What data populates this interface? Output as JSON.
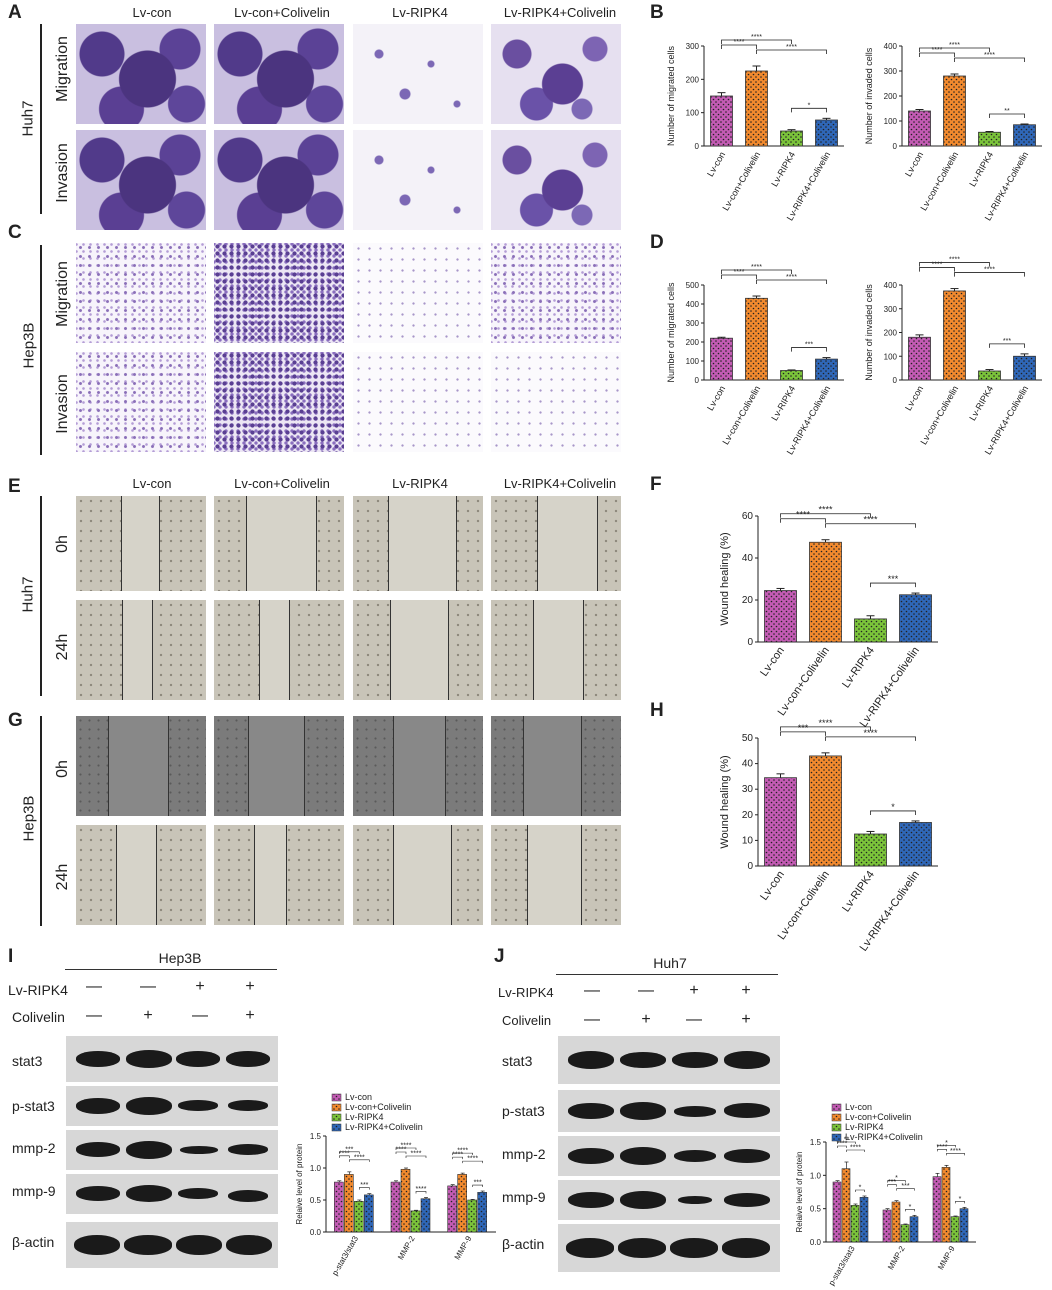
{
  "panels": {
    "A": "A",
    "B": "B",
    "C": "C",
    "D": "D",
    "E": "E",
    "F": "F",
    "G": "G",
    "H": "H",
    "I": "I",
    "J": "J"
  },
  "groups": [
    "Lv-con",
    "Lv-con+Colivelin",
    "Lv-RIPK4",
    "Lv-RIPK4+Colivelin"
  ],
  "cell_lines": {
    "huh7": "Huh7",
    "hep3b": "Hep3B"
  },
  "transwell_rows": [
    "Migration",
    "Invasion"
  ],
  "wound_rows": [
    "0h",
    "24h"
  ],
  "western": {
    "hep3b_title": "Hep3B",
    "huh7_title": "Huh7",
    "treat_labels": [
      "Lv-RIPK4",
      "Colivelin"
    ],
    "ripk4_signs": [
      "—",
      "—",
      "+",
      "+"
    ],
    "colivelin_signs": [
      "—",
      "+",
      "—",
      "+"
    ],
    "proteins_hep3b": [
      "stat3",
      "p-stat3",
      "mmp-2",
      "mmp-9",
      "β-actin"
    ],
    "proteins_huh7": [
      "stat3",
      "p-stat3",
      "mmp-2",
      "mmp-9",
      "β-actin"
    ]
  },
  "colors": {
    "lv_con": "#c35bb4",
    "lv_con_colivelin": "#f28a2e",
    "lv_ripk4": "#7bc43a",
    "lv_ripk4_colivelin": "#2f67b8"
  },
  "chart_data": [
    {
      "id": "B1",
      "type": "bar",
      "ylabel": "Number of migrated cells",
      "ylim": [
        0,
        300
      ],
      "yticks": [
        0,
        100,
        200,
        300
      ],
      "categories": [
        "Lv-con",
        "Lv-con+Colivelin",
        "Lv-RIPK4",
        "Lv-RIPK4+Colivelin"
      ],
      "values": [
        150,
        225,
        45,
        78
      ],
      "errors": [
        10,
        15,
        4,
        5
      ],
      "brackets": [
        {
          "from": 0,
          "to": 1,
          "label": "****"
        },
        {
          "from": 0,
          "to": 2,
          "label": "****"
        },
        {
          "from": 1,
          "to": 3,
          "label": "****"
        },
        {
          "from": 2,
          "to": 3,
          "label": "*"
        }
      ]
    },
    {
      "id": "B2",
      "type": "bar",
      "ylabel": "Number of invaded cells",
      "ylim": [
        0,
        400
      ],
      "yticks": [
        0,
        100,
        200,
        300,
        400
      ],
      "categories": [
        "Lv-con",
        "Lv-con+Colivelin",
        "Lv-RIPK4",
        "Lv-RIPK4+Colivelin"
      ],
      "values": [
        140,
        280,
        55,
        85
      ],
      "errors": [
        6,
        8,
        3,
        3
      ],
      "brackets": [
        {
          "from": 0,
          "to": 1,
          "label": "****"
        },
        {
          "from": 0,
          "to": 2,
          "label": "****"
        },
        {
          "from": 1,
          "to": 3,
          "label": "****"
        },
        {
          "from": 2,
          "to": 3,
          "label": "**"
        }
      ]
    },
    {
      "id": "D1",
      "type": "bar",
      "ylabel": "Number of migrated cells",
      "ylim": [
        0,
        500
      ],
      "yticks": [
        0,
        100,
        200,
        300,
        400,
        500
      ],
      "categories": [
        "Lv-con",
        "Lv-con+Colivelin",
        "Lv-RIPK4",
        "Lv-RIPK4+Colivelin"
      ],
      "values": [
        220,
        430,
        50,
        110
      ],
      "errors": [
        5,
        12,
        3,
        8
      ],
      "brackets": [
        {
          "from": 0,
          "to": 1,
          "label": "****"
        },
        {
          "from": 0,
          "to": 2,
          "label": "****"
        },
        {
          "from": 1,
          "to": 3,
          "label": "****"
        },
        {
          "from": 2,
          "to": 3,
          "label": "***"
        }
      ]
    },
    {
      "id": "D2",
      "type": "bar",
      "ylabel": "Number of invaded cells",
      "ylim": [
        0,
        400
      ],
      "yticks": [
        0,
        100,
        200,
        300,
        400
      ],
      "categories": [
        "Lv-con",
        "Lv-con+Colivelin",
        "Lv-RIPK4",
        "Lv-RIPK4+Colivelin"
      ],
      "values": [
        180,
        375,
        38,
        100
      ],
      "errors": [
        10,
        10,
        6,
        10
      ],
      "brackets": [
        {
          "from": 0,
          "to": 1,
          "label": "****"
        },
        {
          "from": 0,
          "to": 2,
          "label": "****"
        },
        {
          "from": 1,
          "to": 3,
          "label": "****"
        },
        {
          "from": 2,
          "to": 3,
          "label": "***"
        }
      ]
    },
    {
      "id": "F",
      "type": "bar",
      "ylabel": "Wound healing (%)",
      "ylim": [
        0,
        60
      ],
      "yticks": [
        0,
        20,
        40,
        60
      ],
      "categories": [
        "Lv-con",
        "Lv-con+Colivelin",
        "Lv-RIPK4",
        "Lv-RIPK4+Colivelin"
      ],
      "values": [
        24.5,
        47.5,
        11,
        22.5
      ],
      "errors": [
        1,
        1.2,
        1.5,
        0.8
      ],
      "brackets": [
        {
          "from": 0,
          "to": 1,
          "label": "****"
        },
        {
          "from": 0,
          "to": 2,
          "label": "****"
        },
        {
          "from": 1,
          "to": 3,
          "label": "****"
        },
        {
          "from": 2,
          "to": 3,
          "label": "***"
        }
      ]
    },
    {
      "id": "H",
      "type": "bar",
      "ylabel": "Wound healing (%)",
      "ylim": [
        0,
        50
      ],
      "yticks": [
        0,
        10,
        20,
        30,
        40,
        50
      ],
      "categories": [
        "Lv-con",
        "Lv-con+Colivelin",
        "Lv-RIPK4",
        "Lv-RIPK4+Colivelin"
      ],
      "values": [
        34.5,
        43,
        12.5,
        17
      ],
      "errors": [
        1.5,
        1.2,
        1,
        0.6
      ],
      "brackets": [
        {
          "from": 0,
          "to": 1,
          "label": "***"
        },
        {
          "from": 0,
          "to": 2,
          "label": "****"
        },
        {
          "from": 1,
          "to": 3,
          "label": "****"
        },
        {
          "from": 2,
          "to": 3,
          "label": "*"
        }
      ]
    },
    {
      "id": "I",
      "type": "bar",
      "ylabel": "Relaive level of protein",
      "ylim": [
        0,
        1.5
      ],
      "yticks": [
        0.0,
        0.5,
        1.0,
        1.5
      ],
      "categories": [
        "p-stat3/stat3",
        "MMP-2",
        "MMP-9"
      ],
      "series": [
        {
          "name": "Lv-con",
          "values": [
            0.78,
            0.78,
            0.72
          ],
          "errors": [
            0.02,
            0.02,
            0.02
          ]
        },
        {
          "name": "Lv-con+Colivelin",
          "values": [
            0.9,
            0.98,
            0.9
          ],
          "errors": [
            0.04,
            0.02,
            0.02
          ]
        },
        {
          "name": "Lv-RIPK4",
          "values": [
            0.48,
            0.33,
            0.5
          ],
          "errors": [
            0.02,
            0.01,
            0.01
          ]
        },
        {
          "name": "Lv-RIPK4+Colivelin",
          "values": [
            0.58,
            0.52,
            0.62
          ],
          "errors": [
            0.02,
            0.02,
            0.02
          ]
        }
      ],
      "stars": [
        [
          "****",
          "***",
          "****",
          "***"
        ],
        [
          "****",
          "****",
          "****",
          "****"
        ],
        [
          "****",
          "****",
          "****",
          "***"
        ]
      ]
    },
    {
      "id": "J",
      "type": "bar",
      "ylabel": "Relaive level of protein",
      "ylim": [
        0,
        1.5
      ],
      "yticks": [
        0.0,
        0.5,
        1.0,
        1.5
      ],
      "categories": [
        "p-stat3/stat3",
        "MMP-2",
        "MMP-9"
      ],
      "series": [
        {
          "name": "Lv-con",
          "values": [
            0.9,
            0.48,
            0.98
          ],
          "errors": [
            0.02,
            0.02,
            0.05
          ]
        },
        {
          "name": "Lv-con+Colivelin",
          "values": [
            1.1,
            0.6,
            1.12
          ],
          "errors": [
            0.1,
            0.02,
            0.03
          ]
        },
        {
          "name": "Lv-RIPK4",
          "values": [
            0.55,
            0.26,
            0.38
          ],
          "errors": [
            0.02,
            0.01,
            0.01
          ]
        },
        {
          "name": "Lv-RIPK4+Colivelin",
          "values": [
            0.67,
            0.38,
            0.5
          ],
          "errors": [
            0.02,
            0.02,
            0.02
          ]
        }
      ],
      "stars": [
        [
          "****",
          "**",
          "****",
          "*"
        ],
        [
          "***",
          "*",
          "***",
          "*"
        ],
        [
          "****",
          "*",
          "****",
          "*"
        ]
      ]
    }
  ]
}
